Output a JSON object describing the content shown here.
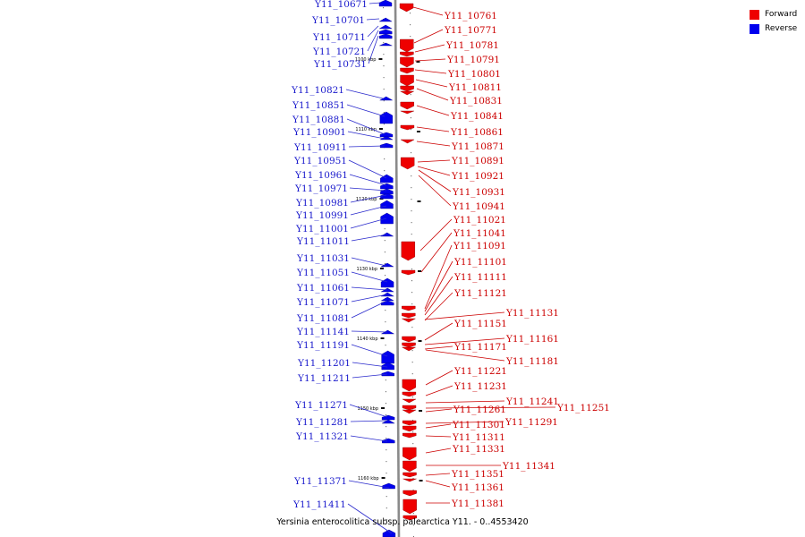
{
  "title": "Yersinia enterocolitica subsp. palearctica Y11. - 0..4553420",
  "legend": [
    {
      "label": "Forward",
      "color": "#ee0000"
    },
    {
      "label": "Reverse",
      "color": "#0000ee"
    }
  ],
  "colors": {
    "forward": "#ee0000",
    "reverse": "#0000ee",
    "forward_label": "#cc0000",
    "reverse_label": "#1a1acc",
    "axis": "#888888"
  },
  "ticks": [
    "1100 kbp",
    "1110 kbp",
    "1120 kbp",
    "1130 kbp",
    "1140 kbp",
    "1150 kbp",
    "1160 kbp"
  ],
  "reverse_genes": [
    "Y11_10671",
    "Y11_10701",
    "Y11_10711",
    "Y11_10721",
    "Y11_10731",
    "Y11_10821",
    "Y11_10851",
    "Y11_10881",
    "Y11_10901",
    "Y11_10911",
    "Y11_10951",
    "Y11_10961",
    "Y11_10971",
    "Y11_10981",
    "Y11_10991",
    "Y11_11001",
    "Y11_11011",
    "Y11_11031",
    "Y11_11051",
    "Y11_11061",
    "Y11_11071",
    "Y11_11081",
    "Y11_11141",
    "Y11_11191",
    "Y11_11201",
    "Y11_11211",
    "Y11_11271",
    "Y11_11281",
    "Y11_11321",
    "Y11_11371",
    "Y11_11411"
  ],
  "forward_genes": [
    "Y11_10761",
    "Y11_10771",
    "Y11_10781",
    "Y11_10791",
    "Y11_10801",
    "Y11_10811",
    "Y11_10831",
    "Y11_10841",
    "Y11_10861",
    "Y11_10871",
    "Y11_10891",
    "Y11_10921",
    "Y11_10931",
    "Y11_10941",
    "Y11_11021",
    "Y11_11041",
    "Y11_11091",
    "Y11_11101",
    "Y11_11111",
    "Y11_11121",
    "Y11_11131",
    "Y11_11151",
    "Y11_11161",
    "Y11_11171",
    "Y11_11181",
    "Y11_11221",
    "Y11_11231",
    "Y11_11241",
    "Y11_11251",
    "Y11_11261",
    "Y11_11291",
    "Y11_11301",
    "Y11_11311",
    "Y11_11331",
    "Y11_11341",
    "Y11_11351",
    "Y11_11361",
    "Y11_11381"
  ]
}
